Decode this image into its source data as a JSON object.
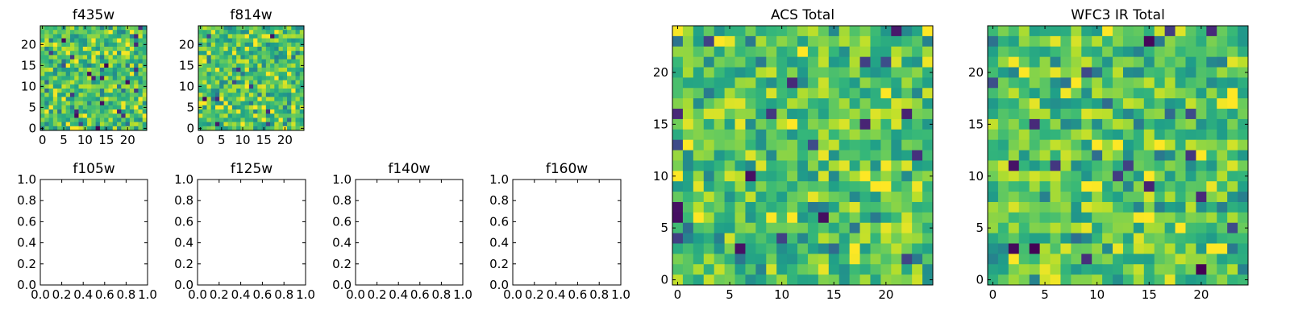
{
  "chart_data": [
    {
      "type": "heatmap",
      "title": "f435w",
      "xlim": [
        -0.5,
        24.5
      ],
      "ylim": [
        -0.5,
        24.5
      ],
      "xticks": [
        0,
        5,
        10,
        15,
        20
      ],
      "yticks": [
        0,
        5,
        10,
        15,
        20
      ],
      "grid_size": 25,
      "colormap": "viridis",
      "has_image": true
    },
    {
      "type": "heatmap",
      "title": "f814w",
      "xlim": [
        -0.5,
        24.5
      ],
      "ylim": [
        -0.5,
        24.5
      ],
      "xticks": [
        0,
        5,
        10,
        15,
        20
      ],
      "yticks": [
        0,
        5,
        10,
        15,
        20
      ],
      "grid_size": 25,
      "colormap": "viridis",
      "has_image": true
    },
    {
      "type": "heatmap",
      "title": "f105w",
      "xlim": [
        0,
        1
      ],
      "ylim": [
        0,
        1
      ],
      "xticks": [
        "0.0",
        "0.2",
        "0.4",
        "0.6",
        "0.8",
        "1.0"
      ],
      "yticks": [
        "0.0",
        "0.2",
        "0.4",
        "0.6",
        "0.8",
        "1.0"
      ],
      "has_image": false
    },
    {
      "type": "heatmap",
      "title": "f125w",
      "xlim": [
        0,
        1
      ],
      "ylim": [
        0,
        1
      ],
      "xticks": [
        "0.0",
        "0.2",
        "0.4",
        "0.6",
        "0.8",
        "1.0"
      ],
      "yticks": [
        "0.0",
        "0.2",
        "0.4",
        "0.6",
        "0.8",
        "1.0"
      ],
      "has_image": false
    },
    {
      "type": "heatmap",
      "title": "f140w",
      "xlim": [
        0,
        1
      ],
      "ylim": [
        0,
        1
      ],
      "xticks": [
        "0.0",
        "0.2",
        "0.4",
        "0.6",
        "0.8",
        "1.0"
      ],
      "yticks": [
        "0.0",
        "0.2",
        "0.4",
        "0.6",
        "0.8",
        "1.0"
      ],
      "has_image": false
    },
    {
      "type": "heatmap",
      "title": "f160w",
      "xlim": [
        0,
        1
      ],
      "ylim": [
        0,
        1
      ],
      "xticks": [
        "0.0",
        "0.2",
        "0.4",
        "0.6",
        "0.8",
        "1.0"
      ],
      "yticks": [
        "0.0",
        "0.2",
        "0.4",
        "0.6",
        "0.8",
        "1.0"
      ],
      "has_image": false
    },
    {
      "type": "heatmap",
      "title": "ACS Total",
      "xlim": [
        -0.5,
        24.5
      ],
      "ylim": [
        -0.5,
        24.5
      ],
      "xticks": [
        0,
        5,
        10,
        15,
        20
      ],
      "yticks": [
        0,
        5,
        10,
        15,
        20
      ],
      "grid_size": 25,
      "colormap": "viridis",
      "has_image": true
    },
    {
      "type": "heatmap",
      "title": "WFC3 IR Total",
      "xlim": [
        -0.5,
        24.5
      ],
      "ylim": [
        -0.5,
        24.5
      ],
      "xticks": [
        0,
        5,
        10,
        15,
        20
      ],
      "yticks": [
        0,
        5,
        10,
        15,
        20
      ],
      "grid_size": 25,
      "colormap": "viridis",
      "has_image": true
    }
  ]
}
